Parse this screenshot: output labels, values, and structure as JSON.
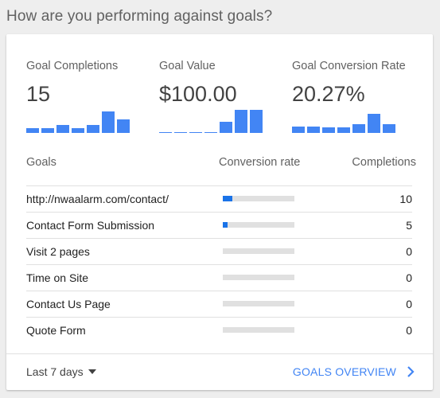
{
  "header": {
    "title": "How are you performing against goals?"
  },
  "colors": {
    "accent": "#4285f4",
    "bar_fill": "#1a73e8",
    "track": "#e0e0e0"
  },
  "metrics": [
    {
      "label": "Goal Completions",
      "value": "15",
      "spark": [
        0.2,
        0.2,
        0.33,
        0.2,
        0.33,
        0.9,
        0.55
      ]
    },
    {
      "label": "Goal Value",
      "value": "$100.00",
      "spark": [
        0,
        0,
        0,
        0,
        0.45,
        0.95,
        0.95
      ]
    },
    {
      "label": "Goal Conversion Rate",
      "value": "20.27%",
      "spark": [
        0.28,
        0.28,
        0.24,
        0.24,
        0.36,
        0.8,
        0.36
      ]
    }
  ],
  "table": {
    "headers": {
      "goals": "Goals",
      "rate": "Conversion rate",
      "completions": "Completions"
    },
    "rows": [
      {
        "label": "http://nwaalarm.com/contact/",
        "rate": 0.135,
        "count": "10"
      },
      {
        "label": "Contact Form Submission",
        "rate": 0.068,
        "count": "5"
      },
      {
        "label": "Visit 2 pages",
        "rate": 0,
        "count": "0"
      },
      {
        "label": "Time on Site",
        "rate": 0,
        "count": "0"
      },
      {
        "label": "Contact Us Page",
        "rate": 0,
        "count": "0"
      },
      {
        "label": "Quote Form",
        "rate": 0,
        "count": "0"
      }
    ]
  },
  "footer": {
    "range": "Last 7 days",
    "overview": "GOALS OVERVIEW",
    "chevron_icon": "chevron-right-icon"
  }
}
